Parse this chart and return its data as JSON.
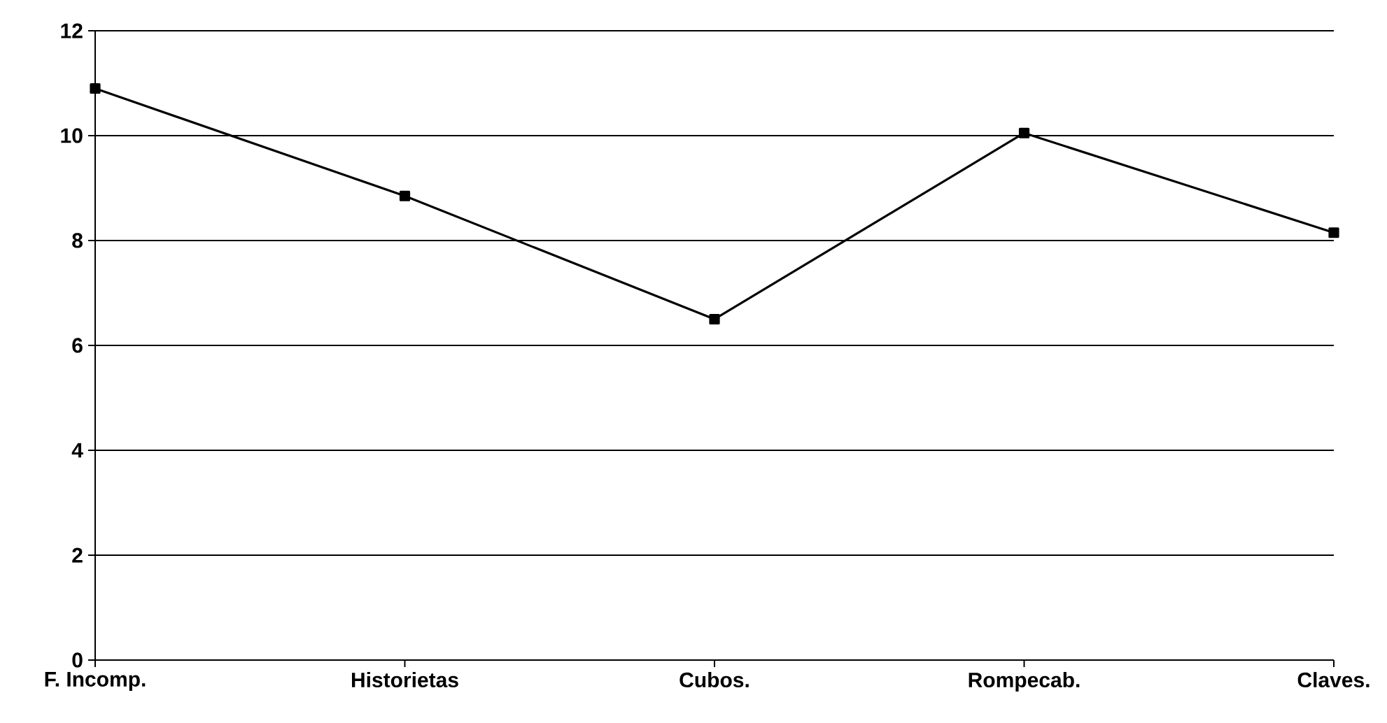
{
  "chart_data": {
    "type": "line",
    "categories": [
      "F. Incomp.",
      "Historietas",
      "Cubos.",
      "Rompecab.",
      "Claves."
    ],
    "series": [
      {
        "color": "#000000",
        "values": [
          10.9,
          8.85,
          6.5,
          10.05,
          8.15
        ]
      }
    ],
    "ylim": [
      0,
      12
    ],
    "yticks": [
      0,
      2,
      4,
      6,
      8,
      10,
      12
    ],
    "grid": "y",
    "marker": "square",
    "line_style": "solid"
  }
}
